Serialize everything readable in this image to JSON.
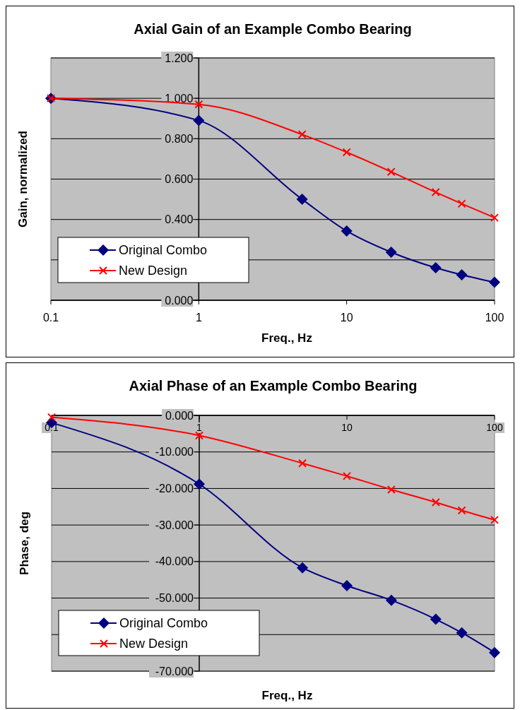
{
  "chart_data": [
    {
      "type": "line",
      "title": "Axial Gain of an Example Combo Bearing",
      "xlabel": "Freq., Hz",
      "ylabel": "Gain, normalized",
      "log": "x",
      "grid": "y",
      "legend": "bottom left",
      "x": [
        0.1,
        1,
        5,
        10,
        20,
        40,
        60,
        100
      ],
      "xlim": [
        0.1,
        100
      ],
      "xticks": [
        0.1,
        1,
        10,
        100
      ],
      "ylim": [
        0,
        1.2
      ],
      "yticks": [
        {
          "value": 0,
          "label": "0.000"
        },
        {
          "value": 0.2,
          "label": null
        },
        {
          "value": 0.4,
          "label": "0.400"
        },
        {
          "value": 0.6,
          "label": "0.600"
        },
        {
          "value": 0.8,
          "label": "0.800"
        },
        {
          "value": 1.0,
          "label": "1.000"
        },
        {
          "value": 1.2,
          "label": "1.200"
        }
      ],
      "series": [
        {
          "name": "Original Combo",
          "color": "#000080",
          "marker": "diamond",
          "values": [
            1.0,
            0.89,
            0.5,
            0.343,
            0.238,
            0.161,
            0.126,
            0.089
          ]
        },
        {
          "name": "New Design",
          "color": "#ff0000",
          "marker": "cross",
          "values": [
            1.0,
            0.97,
            0.821,
            0.733,
            0.636,
            0.535,
            0.478,
            0.409
          ]
        }
      ]
    },
    {
      "type": "line",
      "title": "Axial Phase of an Example Combo Bearing",
      "xlabel": "Freq., Hz",
      "ylabel": "Phase, deg",
      "log": "x",
      "grid": "y",
      "legend": "bottom left",
      "x": [
        0.1,
        1,
        5,
        10,
        20,
        40,
        60,
        100
      ],
      "xlim": [
        0.1,
        100
      ],
      "xticks": [
        0.1,
        1,
        10,
        100
      ],
      "ylim": [
        -70,
        0
      ],
      "yticks": [
        {
          "value": -70,
          "label": "-70.000"
        },
        {
          "value": -60,
          "label": null
        },
        {
          "value": -50,
          "label": "-50.000"
        },
        {
          "value": -40,
          "label": "-40.000"
        },
        {
          "value": -30,
          "label": "-30.000"
        },
        {
          "value": -20,
          "label": "-20.000"
        },
        {
          "value": -10,
          "label": "-10.000"
        },
        {
          "value": 0,
          "label": "0.000"
        }
      ],
      "series": [
        {
          "name": "Original Combo",
          "color": "#000080",
          "marker": "diamond",
          "values": [
            -2.0,
            -18.8,
            -41.7,
            -46.6,
            -50.6,
            -55.8,
            -59.5,
            -64.9
          ]
        },
        {
          "name": "New Design",
          "color": "#ff0000",
          "marker": "cross",
          "values": [
            -0.5,
            -5.5,
            -13.1,
            -16.6,
            -20.3,
            -23.8,
            -26.0,
            -28.6
          ]
        }
      ]
    }
  ]
}
